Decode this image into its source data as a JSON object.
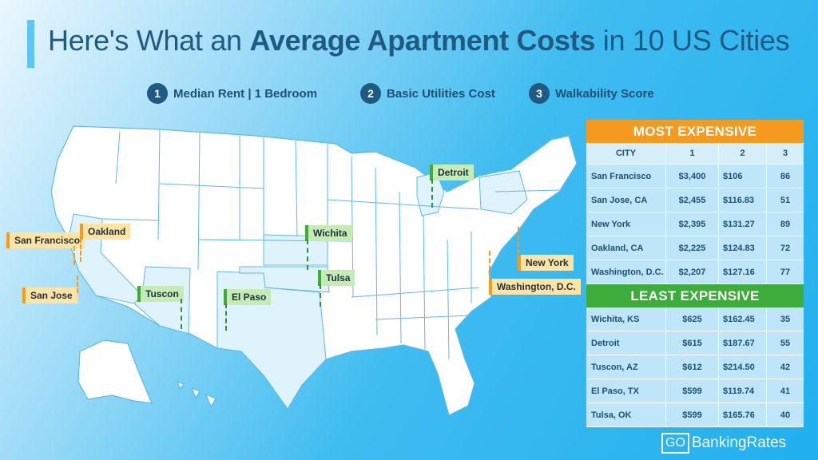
{
  "title": {
    "pre": "Here's What an ",
    "bold": "Average Apartment Costs",
    "post": " in 10 US Cities"
  },
  "legend": [
    {
      "num": "1",
      "label": "Median Rent | 1 Bedroom"
    },
    {
      "num": "2",
      "label": "Basic Utilities Cost"
    },
    {
      "num": "3",
      "label": "Walkability Score"
    }
  ],
  "map_labels": {
    "san_francisco": "San Francisco",
    "oakland": "Oakland",
    "san_jose": "San Jose",
    "detroit": "Detroit",
    "wichita": "Wichita",
    "tulsa": "Tulsa",
    "tuscon": "Tuscon",
    "el_paso": "El Paso",
    "new_york": "New York",
    "washington": "Washington, D.C."
  },
  "table": {
    "most_expensive": "MOST EXPENSIVE",
    "least_expensive": "LEAST EXPENSIVE",
    "headers": [
      "CITY",
      "1",
      "2",
      "3"
    ],
    "most_rows": [
      [
        "San Francisco",
        "$3,400",
        "$106",
        "86"
      ],
      [
        "San Jose, CA",
        "$2,455",
        "$116.83",
        "51"
      ],
      [
        "New York",
        "$2,395",
        "$131.27",
        "89"
      ],
      [
        "Oakland, CA",
        "$2,225",
        "$124.83",
        "72"
      ],
      [
        "Washington, D.C.",
        "$2,207",
        "$127.16",
        "77"
      ]
    ],
    "least_rows": [
      [
        "Wichita, KS",
        "$625",
        "$162.45",
        "35"
      ],
      [
        "Detroit",
        "$615",
        "$187.67",
        "55"
      ],
      [
        "Tuscon, AZ",
        "$612",
        "$214.50",
        "42"
      ],
      [
        "El Paso, TX",
        "$599",
        "$119.74",
        "41"
      ],
      [
        "Tulsa, OK",
        "$599",
        "$165.76",
        "40"
      ]
    ]
  },
  "brand": {
    "go": "GO",
    "rest": "BankingRates"
  },
  "colors": {
    "title": "#1f5a82",
    "orange": "#f39a1f",
    "green": "#3dac3a",
    "table_cell": "#bfe6f8"
  }
}
